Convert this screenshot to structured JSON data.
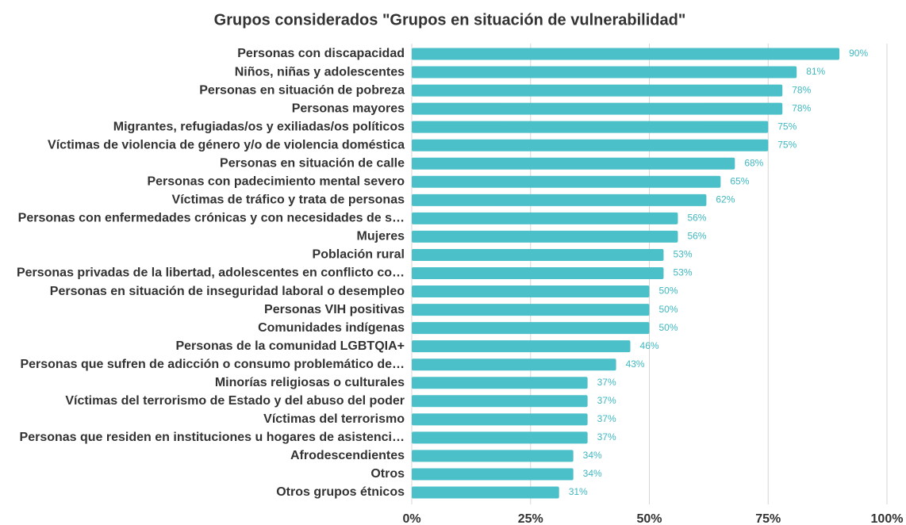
{
  "chart_data": {
    "type": "bar",
    "orientation": "horizontal",
    "title": "Grupos considerados \"Grupos en situación de vulnerabilidad\"",
    "categories": [
      "Personas con discapacidad",
      "Niños, niñas y adolescentes",
      "Personas en situación de pobreza",
      "Personas mayores",
      "Migrantes, refugiadas/os y exiliadas/os políticos",
      "Víctimas de violencia de género y/o de violencia doméstica",
      "Personas en situación de calle",
      "Personas con padecimiento mental severo",
      "Víctimas de tráfico y trata de personas",
      "Personas con enfermedades crónicas y con necesidades de s…",
      "Mujeres",
      "Población rural",
      "Personas privadas de la libertad, adolescentes en conflicto co…",
      "Personas en situación de inseguridad laboral o desempleo",
      "Personas VIH positivas",
      "Comunidades indígenas",
      "Personas de la comunidad LGBTQIA+",
      "Personas que sufren de adicción o consumo problemático de…",
      "Minorías religiosas o culturales",
      "Víctimas del terrorismo de Estado y del abuso del poder",
      "Víctimas del terrorismo",
      "Personas que residen en instituciones u hogares de asistenci…",
      "Afrodescendientes",
      "Otros",
      "Otros grupos étnicos"
    ],
    "values": [
      90,
      81,
      78,
      78,
      75,
      75,
      68,
      65,
      62,
      56,
      56,
      53,
      53,
      50,
      50,
      50,
      46,
      43,
      37,
      37,
      37,
      37,
      34,
      34,
      31
    ],
    "value_labels": [
      "90%",
      "81%",
      "78%",
      "78%",
      "75%",
      "75%",
      "68%",
      "65%",
      "62%",
      "56%",
      "56%",
      "53%",
      "53%",
      "50%",
      "50%",
      "50%",
      "46%",
      "43%",
      "37%",
      "37%",
      "37%",
      "37%",
      "34%",
      "34%",
      "31%"
    ],
    "color": "#4bc0c8",
    "xlim": [
      0,
      100
    ],
    "xticks": [
      {
        "value": 0,
        "label": "0%"
      },
      {
        "value": 25,
        "label": "25%"
      },
      {
        "value": 50,
        "label": "50%"
      },
      {
        "value": 75,
        "label": "75%"
      },
      {
        "value": 100,
        "label": "100%"
      }
    ],
    "grid": true
  }
}
